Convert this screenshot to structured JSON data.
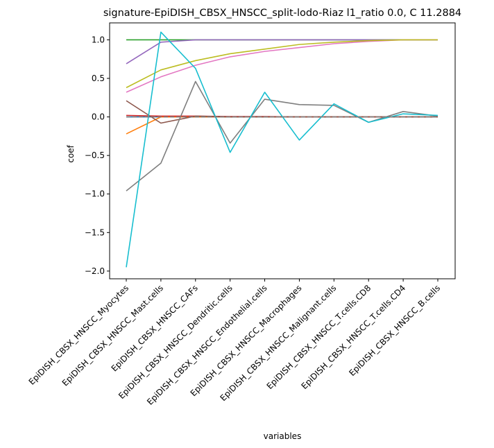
{
  "chart_data": {
    "type": "line",
    "title": "signature-EpiDISH_CBSX_HNSCC_split-lodo-Riaz l1_ratio 0.0, C 11.2884",
    "xlabel": "variables",
    "ylabel": "coef",
    "ylim": [
      -2.1,
      1.22
    ],
    "yticks": [
      1.0,
      0.5,
      0.0,
      -0.5,
      -1.0,
      -1.5,
      -2.0
    ],
    "ytick_labels": [
      "1.0",
      "0.5",
      "0.0",
      "−0.5",
      "−1.0",
      "−1.5",
      "−2.0"
    ],
    "categories": [
      "EpiDISH_CBSX_HNSCC_Myocytes",
      "EpiDISH_CBSX_HNSCC_Mast.cells",
      "EpiDISH_CBSX_HNSCC_CAFs",
      "EpiDISH_CBSX_HNSCC_Dendritic.cells",
      "EpiDISH_CBSX_HNSCC_Endothelial.cells",
      "EpiDISH_CBSX_HNSCC_Macrophages",
      "EpiDISH_CBSX_HNSCC_Malignant.cells",
      "EpiDISH_CBSX_HNSCC_T.cells.CD8",
      "EpiDISH_CBSX_HNSCC_T.cells.CD4",
      "EpiDISH_CBSX_HNSCC_B.cells"
    ],
    "grid": false,
    "baseline": {
      "value": 0.0,
      "style": "dashed",
      "color": "#808080"
    },
    "series": [
      {
        "color": "#1f77b4",
        "values": [
          0.0,
          0.0,
          0.0,
          0.0,
          0.0,
          0.0,
          0.0,
          0.0,
          0.0,
          0.0
        ]
      },
      {
        "color": "#ff7f0e",
        "values": [
          -0.22,
          0.0,
          0.0,
          0.0,
          0.0,
          0.0,
          0.0,
          0.0,
          0.0,
          0.0
        ]
      },
      {
        "color": "#2ca02c",
        "values": [
          1.0,
          1.0,
          1.0,
          1.0,
          1.0,
          1.0,
          1.0,
          1.0,
          1.0,
          1.0
        ]
      },
      {
        "color": "#d62728",
        "values": [
          0.02,
          0.01,
          0.01,
          0.005,
          0.005,
          0.0,
          0.0,
          0.0,
          0.0,
          0.0
        ]
      },
      {
        "color": "#9467bd",
        "values": [
          0.69,
          0.97,
          1.0,
          1.0,
          1.0,
          1.0,
          1.0,
          1.0,
          1.0,
          1.0
        ]
      },
      {
        "color": "#8c564b",
        "values": [
          0.21,
          -0.08,
          0.01,
          0.0,
          0.0,
          0.0,
          0.0,
          0.0,
          0.0,
          0.0
        ]
      },
      {
        "color": "#e377c2",
        "values": [
          0.32,
          0.52,
          0.67,
          0.78,
          0.85,
          0.9,
          0.95,
          0.98,
          1.0,
          1.0
        ]
      },
      {
        "color": "#7f7f7f",
        "values": [
          -0.96,
          -0.6,
          0.46,
          -0.34,
          0.23,
          0.16,
          0.15,
          -0.07,
          0.07,
          0.01
        ]
      },
      {
        "color": "#bcbd22",
        "values": [
          0.38,
          0.61,
          0.73,
          0.82,
          0.88,
          0.94,
          0.97,
          0.99,
          1.0,
          1.0
        ]
      },
      {
        "color": "#17becf",
        "values": [
          -1.95,
          1.1,
          0.63,
          -0.46,
          0.32,
          -0.3,
          0.17,
          -0.07,
          0.04,
          0.02
        ]
      }
    ]
  }
}
